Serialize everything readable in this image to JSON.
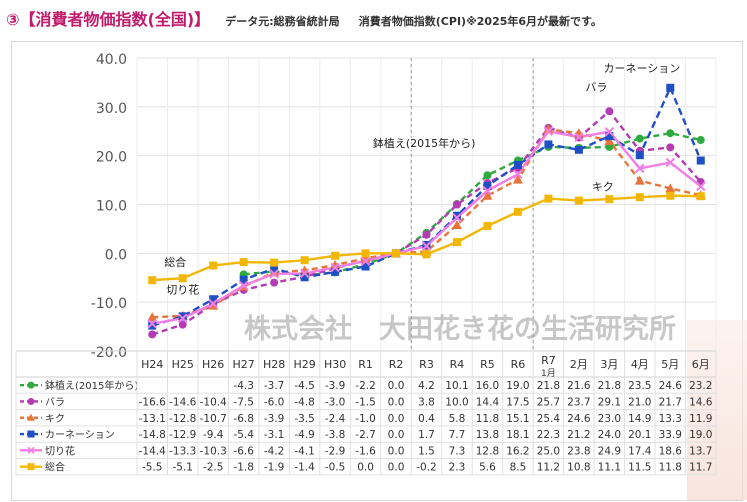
{
  "header": {
    "title": "③【消費者物価指数(全国)】",
    "source": "データ元:総務省統計局",
    "note": "消費者物価指数(CPI)※2025年6月が最新です。"
  },
  "watermark": "株式会社　大田花き花の生活研究所",
  "chart_data": {
    "type": "line",
    "categories": [
      "H24",
      "H25",
      "H26",
      "H27",
      "H28",
      "H29",
      "H30",
      "R1",
      "R2",
      "R3",
      "R4",
      "R5",
      "R6",
      "R7\n1月",
      "2月",
      "3月",
      "4月",
      "5月",
      "6月"
    ],
    "ylim": [
      -20,
      40
    ],
    "yticks": [
      "-20.0",
      "-10.0",
      "0.0",
      "10.0",
      "20.0",
      "30.0",
      "40.0"
    ],
    "grid": true,
    "series": [
      {
        "name": "鉢植え(2015年から)",
        "color": "#2eaa3e",
        "dash": "6,4",
        "marker": "circle",
        "values": [
          null,
          null,
          null,
          -4.3,
          -3.7,
          -4.5,
          -3.9,
          -2.2,
          0.0,
          4.2,
          10.1,
          16.0,
          19.0,
          21.8,
          21.6,
          21.8,
          23.5,
          24.6,
          23.2
        ],
        "cells": [
          "",
          "",
          "",
          "-4.3",
          "-3.7",
          "-4.5",
          "-3.9",
          "-2.2",
          "0.0",
          "4.2",
          "10.1",
          "16.0",
          "19.0",
          "21.8",
          "21.6",
          "21.8",
          "23.5",
          "24.6",
          "23.2"
        ]
      },
      {
        "name": "バラ",
        "color": "#b43bb4",
        "dash": "6,4",
        "marker": "circle",
        "values": [
          -16.6,
          -14.6,
          -10.4,
          -7.5,
          -6.0,
          -4.8,
          -3.0,
          -1.5,
          0.0,
          3.8,
          10.0,
          14.4,
          17.5,
          25.7,
          23.7,
          29.1,
          21.0,
          21.7,
          14.6
        ],
        "cells": [
          "-16.6",
          "-14.6",
          "-10.4",
          "-7.5",
          "-6.0",
          "-4.8",
          "-3.0",
          "-1.5",
          "0.0",
          "3.8",
          "10.0",
          "14.4",
          "17.5",
          "25.7",
          "23.7",
          "29.1",
          "21.0",
          "21.7",
          "14.6"
        ]
      },
      {
        "name": "キク",
        "color": "#e8743b",
        "dash": "6,4",
        "marker": "triangle",
        "values": [
          -13.1,
          -12.8,
          -10.7,
          -6.8,
          -3.9,
          -3.5,
          -2.4,
          -1.0,
          0.0,
          0.4,
          5.8,
          11.8,
          15.1,
          25.4,
          24.6,
          23.0,
          14.9,
          13.3,
          11.9
        ],
        "cells": [
          "-13.1",
          "-12.8",
          "-10.7",
          "-6.8",
          "-3.9",
          "-3.5",
          "-2.4",
          "-1.0",
          "0.0",
          "0.4",
          "5.8",
          "11.8",
          "15.1",
          "25.4",
          "24.6",
          "23.0",
          "14.9",
          "13.3",
          "11.9"
        ]
      },
      {
        "name": "カーネーション",
        "color": "#1f4fc4",
        "dash": "7,4",
        "marker": "square",
        "values": [
          -14.8,
          -12.9,
          -9.4,
          -5.4,
          -3.1,
          -4.9,
          -3.8,
          -2.7,
          0.0,
          1.7,
          7.7,
          13.8,
          18.1,
          22.3,
          21.2,
          24.0,
          20.1,
          33.9,
          19.0
        ],
        "cells": [
          "-14.8",
          "-12.9",
          "-9.4",
          "-5.4",
          "-3.1",
          "-4.9",
          "-3.8",
          "-2.7",
          "0.0",
          "1.7",
          "7.7",
          "13.8",
          "18.1",
          "22.3",
          "21.2",
          "24.0",
          "20.1",
          "33.9",
          "19.0"
        ]
      },
      {
        "name": "切り花",
        "color": "#f27ee6",
        "dash": "",
        "marker": "x",
        "values": [
          -14.4,
          -13.3,
          -10.3,
          -6.6,
          -4.2,
          -4.1,
          -2.9,
          -1.6,
          0.0,
          1.5,
          7.3,
          12.8,
          16.2,
          25.0,
          23.8,
          24.9,
          17.4,
          18.6,
          13.7
        ],
        "cells": [
          "-14.4",
          "-13.3",
          "-10.3",
          "-6.6",
          "-4.2",
          "-4.1",
          "-2.9",
          "-1.6",
          "0.0",
          "1.5",
          "7.3",
          "12.8",
          "16.2",
          "25.0",
          "23.8",
          "24.9",
          "17.4",
          "18.6",
          "13.7"
        ]
      },
      {
        "name": "総合",
        "color": "#f2b705",
        "dash": "",
        "marker": "square",
        "values": [
          -5.5,
          -5.1,
          -2.5,
          -1.8,
          -1.9,
          -1.4,
          -0.5,
          0.0,
          0.0,
          -0.2,
          2.3,
          5.6,
          8.5,
          11.2,
          10.8,
          11.1,
          11.5,
          11.8,
          11.7
        ],
        "cells": [
          "-5.5",
          "-5.1",
          "-2.5",
          "-1.8",
          "-1.9",
          "-1.4",
          "-0.5",
          "0.0",
          "0.0",
          "-0.2",
          "2.3",
          "5.6",
          "8.5",
          "11.2",
          "10.8",
          "11.1",
          "11.5",
          "11.8",
          "11.7"
        ]
      }
    ],
    "annotations": [
      {
        "text": "鉢植え(2015年から)",
        "series": 0,
        "at": 11
      },
      {
        "text": "バラ",
        "series": 1,
        "at": 15
      },
      {
        "text": "カーネーション",
        "series": 3,
        "at": 17
      },
      {
        "text": "キク",
        "series": 2,
        "at": 16
      },
      {
        "text": "総合",
        "series": 5,
        "at": 0
      },
      {
        "text": "切り花",
        "series": 4,
        "at": 0
      }
    ]
  }
}
